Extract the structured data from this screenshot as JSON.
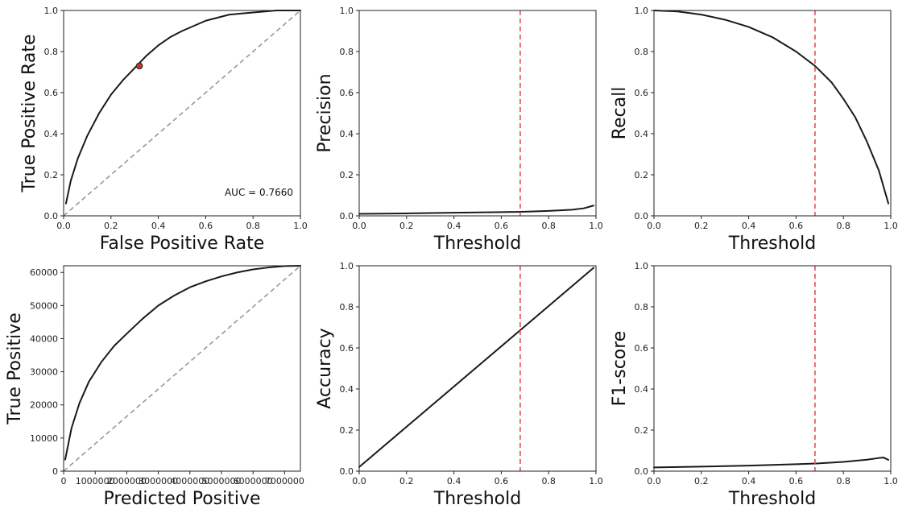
{
  "colors": {
    "curve": "#1a1a1a",
    "diagonal": "#999999",
    "threshold_line": "#e0505a",
    "marker_fill": "#c0392b",
    "axes": "#222222"
  },
  "chart_data": [
    {
      "type": "line",
      "xlabel": "False Positive Rate",
      "ylabel": "True Positive Rate",
      "xlim": [
        0,
        1
      ],
      "ylim": [
        0,
        1
      ],
      "xticks": [
        "0.0",
        "0.2",
        "0.4",
        "0.6",
        "0.8",
        "1.0"
      ],
      "yticks": [
        "0.0",
        "0.2",
        "0.4",
        "0.6",
        "0.8",
        "1.0"
      ],
      "grid": false,
      "diagonal": true,
      "annotation": "AUC = 0.7660",
      "marker": {
        "x": 0.32,
        "y": 0.73
      },
      "series": [
        {
          "x": [
            0.01,
            0.03,
            0.06,
            0.1,
            0.15,
            0.2,
            0.25,
            0.3,
            0.35,
            0.4,
            0.45,
            0.5,
            0.6,
            0.7,
            0.8,
            0.9,
            1.0
          ],
          "y": [
            0.06,
            0.17,
            0.28,
            0.39,
            0.5,
            0.59,
            0.66,
            0.72,
            0.78,
            0.83,
            0.87,
            0.9,
            0.95,
            0.98,
            0.99,
            1.0,
            1.0
          ]
        }
      ]
    },
    {
      "type": "line",
      "xlabel": "Threshold",
      "ylabel": "Precision",
      "xlim": [
        0,
        1
      ],
      "ylim": [
        0,
        1
      ],
      "xticks": [
        "0.0",
        "0.2",
        "0.4",
        "0.6",
        "0.8",
        "1.0"
      ],
      "yticks": [
        "0.0",
        "0.2",
        "0.4",
        "0.6",
        "0.8",
        "1.0"
      ],
      "grid": false,
      "vline": 0.68,
      "series": [
        {
          "x": [
            0.0,
            0.2,
            0.4,
            0.6,
            0.7,
            0.8,
            0.9,
            0.95,
            0.99
          ],
          "y": [
            0.01,
            0.012,
            0.015,
            0.018,
            0.02,
            0.024,
            0.03,
            0.037,
            0.05
          ]
        }
      ]
    },
    {
      "type": "line",
      "xlabel": "Threshold",
      "ylabel": "Recall",
      "xlim": [
        0,
        1
      ],
      "ylim": [
        0,
        1
      ],
      "xticks": [
        "0.0",
        "0.2",
        "0.4",
        "0.6",
        "0.8",
        "1.0"
      ],
      "yticks": [
        "0.0",
        "0.2",
        "0.4",
        "0.6",
        "0.8",
        "1.0"
      ],
      "grid": false,
      "vline": 0.68,
      "series": [
        {
          "x": [
            0.0,
            0.1,
            0.2,
            0.3,
            0.4,
            0.5,
            0.6,
            0.68,
            0.75,
            0.8,
            0.85,
            0.9,
            0.95,
            0.99
          ],
          "y": [
            1.0,
            0.995,
            0.98,
            0.955,
            0.92,
            0.87,
            0.8,
            0.73,
            0.65,
            0.57,
            0.48,
            0.36,
            0.22,
            0.06
          ]
        }
      ]
    },
    {
      "type": "line",
      "xlabel": "Predicted Positive",
      "ylabel": "True Positive",
      "xlim": [
        0,
        7500000
      ],
      "ylim": [
        0,
        62000
      ],
      "xticks": [
        "0",
        "1000000",
        "2000000",
        "3000000",
        "4000000",
        "5000000",
        "6000000",
        "7000000"
      ],
      "yticks": [
        "0",
        "10000",
        "20000",
        "30000",
        "40000",
        "50000",
        "60000"
      ],
      "grid": false,
      "diagonal": true,
      "series": [
        {
          "x": [
            50000,
            250000,
            500000,
            800000,
            1200000,
            1600000,
            2000000,
            2500000,
            3000000,
            3500000,
            4000000,
            4500000,
            5000000,
            5500000,
            6000000,
            6500000,
            7000000,
            7500000
          ],
          "y": [
            3500,
            13000,
            20500,
            27000,
            33000,
            37800,
            41500,
            46000,
            50000,
            53000,
            55500,
            57300,
            58800,
            60000,
            60900,
            61500,
            61900,
            62000
          ]
        }
      ]
    },
    {
      "type": "line",
      "xlabel": "Threshold",
      "ylabel": "Accuracy",
      "xlim": [
        0,
        1
      ],
      "ylim": [
        0,
        1
      ],
      "xticks": [
        "0.0",
        "0.2",
        "0.4",
        "0.6",
        "0.8",
        "1.0"
      ],
      "yticks": [
        "0.0",
        "0.2",
        "0.4",
        "0.6",
        "0.8",
        "1.0"
      ],
      "grid": false,
      "vline": 0.68,
      "series": [
        {
          "x": [
            0.0,
            0.99
          ],
          "y": [
            0.02,
            0.99
          ]
        }
      ]
    },
    {
      "type": "line",
      "xlabel": "Threshold",
      "ylabel": "F1-score",
      "xlim": [
        0,
        1
      ],
      "ylim": [
        0,
        1
      ],
      "xticks": [
        "0.0",
        "0.2",
        "0.4",
        "0.6",
        "0.8",
        "1.0"
      ],
      "yticks": [
        "0.0",
        "0.2",
        "0.4",
        "0.6",
        "0.8",
        "1.0"
      ],
      "grid": false,
      "vline": 0.68,
      "series": [
        {
          "x": [
            0.0,
            0.2,
            0.4,
            0.6,
            0.7,
            0.8,
            0.9,
            0.95,
            0.97,
            0.99
          ],
          "y": [
            0.018,
            0.022,
            0.027,
            0.034,
            0.038,
            0.045,
            0.056,
            0.064,
            0.066,
            0.055
          ]
        }
      ]
    }
  ]
}
